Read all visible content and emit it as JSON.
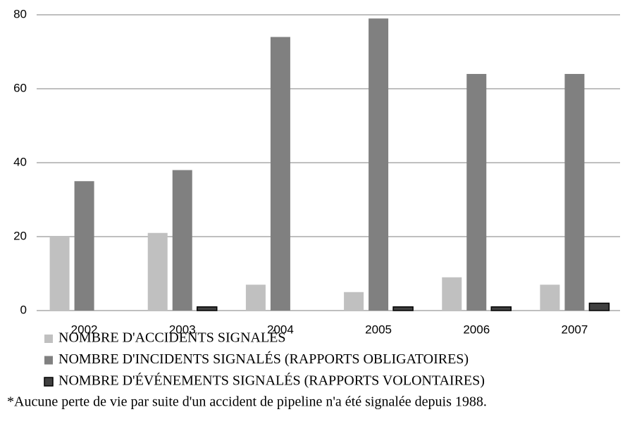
{
  "chart_data": {
    "type": "bar",
    "categories": [
      "2002",
      "2003",
      "2004",
      "2005",
      "2006",
      "2007"
    ],
    "series": [
      {
        "name": "NOMBRE D'ACCIDENTS SIGNALÉS",
        "color": "#c0c0c0",
        "values": [
          20,
          21,
          7,
          5,
          9,
          7
        ]
      },
      {
        "name": "NOMBRE D'INCIDENTS SIGNALÉS (RAPPORTS OBLIGATOIRES)",
        "color": "#808080",
        "values": [
          35,
          38,
          74,
          79,
          64,
          64
        ]
      },
      {
        "name": "NOMBRE D'ÉVÉNEMENTS SIGNALÉS (RAPPORTS VOLONTAIRES)",
        "color": "#404040",
        "values": [
          0,
          1,
          0,
          1,
          1,
          2
        ]
      }
    ],
    "ylim": [
      0,
      80
    ],
    "yticks": [
      0,
      20,
      40,
      60,
      80
    ],
    "grid": true,
    "note": "*Aucune perte de vie par suite d'un accident de pipeline n'a été signalée depuis 1988."
  }
}
